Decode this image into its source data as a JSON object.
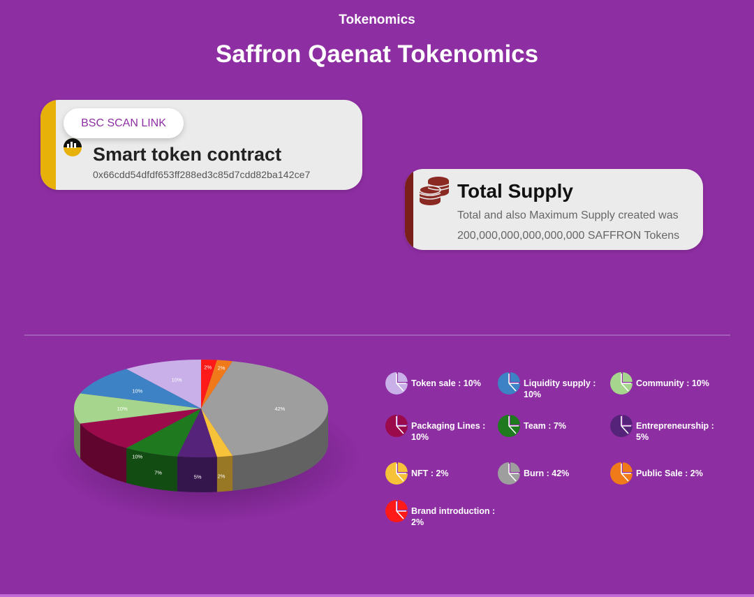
{
  "header": {
    "eyebrow": "Tokenomics",
    "title": "Saffron Qaenat Tokenomics"
  },
  "contract_card": {
    "link_label": "BSC SCAN LINK",
    "title": "Smart token contract",
    "address": "0x66cdd54dfdf653ff288ed3c85d7cdd82ba142ce7",
    "accent": "#e8b10a"
  },
  "supply_card": {
    "title": "Total Supply",
    "line1": "Total and also Maximum Supply created was",
    "line2": "200,000,000,000,000,000 SAFFRON Tokens",
    "accent": "#7b1f1a"
  },
  "chart_data": {
    "type": "pie",
    "title": "",
    "slices": [
      {
        "label": "Brand introduction",
        "value": 2,
        "color": "#ff1a1a",
        "display": "2%"
      },
      {
        "label": "Public Sale",
        "value": 2,
        "color": "#f07a1a",
        "display": "2%"
      },
      {
        "label": "Burn",
        "value": 42,
        "color": "#9e9e9e",
        "display": "42%"
      },
      {
        "label": "NFT",
        "value": 2,
        "color": "#f5c23a",
        "display": "2%"
      },
      {
        "label": "Entrepreneurship",
        "value": 5,
        "color": "#55247a",
        "display": "5%"
      },
      {
        "label": "Team",
        "value": 7,
        "color": "#1f7a1f",
        "display": "7%"
      },
      {
        "label": "Packaging Lines",
        "value": 10,
        "color": "#9b0a4a",
        "display": "10%"
      },
      {
        "label": "Community",
        "value": 10,
        "color": "#a6d68d",
        "display": "10%"
      },
      {
        "label": "Liquidity supply",
        "value": 10,
        "color": "#3d82c4",
        "display": "10%"
      },
      {
        "label": "Token sale",
        "value": 10,
        "color": "#c9b0e8",
        "display": "10%"
      }
    ]
  },
  "legend": [
    {
      "text": "Token sale : 10%",
      "color": "#c9b0e8"
    },
    {
      "text": "Liquidity supply : 10%",
      "color": "#3d82c4"
    },
    {
      "text": "Community : 10%",
      "color": "#a6d68d"
    },
    {
      "text": "Packaging Lines : 10%",
      "color": "#9b0a4a"
    },
    {
      "text": "Team : 7%",
      "color": "#1f7a1f"
    },
    {
      "text": "Entrepreneurship : 5%",
      "color": "#55247a"
    },
    {
      "text": "NFT : 2%",
      "color": "#f5c23a"
    },
    {
      "text": "Burn : 42%",
      "color": "#9e9e9e"
    },
    {
      "text": "Public Sale : 2%",
      "color": "#f07a1a"
    },
    {
      "text": "Brand introduction : 2%",
      "color": "#ff1a1a"
    }
  ],
  "colors": {
    "background": "#8e2ea3",
    "card": "#ebebeb"
  }
}
